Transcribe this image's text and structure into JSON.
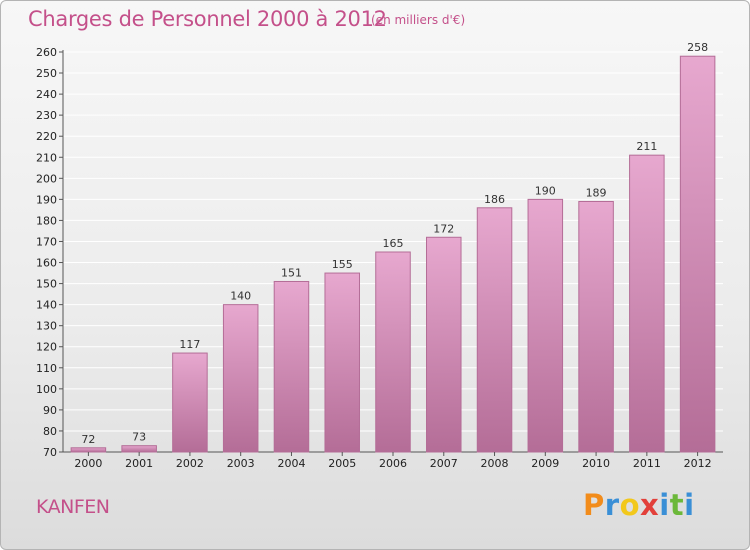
{
  "title": "Charges de Personnel 2000 à 2012",
  "unit_note": "(en milliers d'€)",
  "place_name": "KANFEN",
  "logo": {
    "letters": [
      "P",
      "r",
      "o",
      "x",
      "i",
      "t",
      "i"
    ],
    "colors": [
      "#f28c1b",
      "#3a8fd6",
      "#f2c81b",
      "#e2403a",
      "#3a8fd6",
      "#6cb83a",
      "#3a8fd6"
    ]
  },
  "colors": {
    "bar_fill_top": "#e7a8cf",
    "bar_fill_bottom": "#b46d97",
    "bar_stroke": "#b46d97",
    "text_accent": "#c4508a",
    "grid": "#ffffff"
  },
  "chart_data": {
    "type": "bar",
    "title": "Charges de Personnel 2000 à 2012",
    "subtitle": "(en milliers d'€)",
    "categories": [
      "2000",
      "2001",
      "2002",
      "2003",
      "2004",
      "2005",
      "2006",
      "2007",
      "2008",
      "2009",
      "2010",
      "2011",
      "2012"
    ],
    "values": [
      72,
      73,
      117,
      140,
      151,
      155,
      165,
      172,
      186,
      190,
      189,
      211,
      258
    ],
    "xlabel": "",
    "ylabel": "",
    "ylim": [
      70,
      260
    ],
    "yticks": [
      70,
      80,
      90,
      100,
      110,
      120,
      130,
      140,
      150,
      160,
      170,
      180,
      190,
      200,
      210,
      220,
      230,
      240,
      250,
      260
    ],
    "grid": true,
    "data_labels": true
  }
}
